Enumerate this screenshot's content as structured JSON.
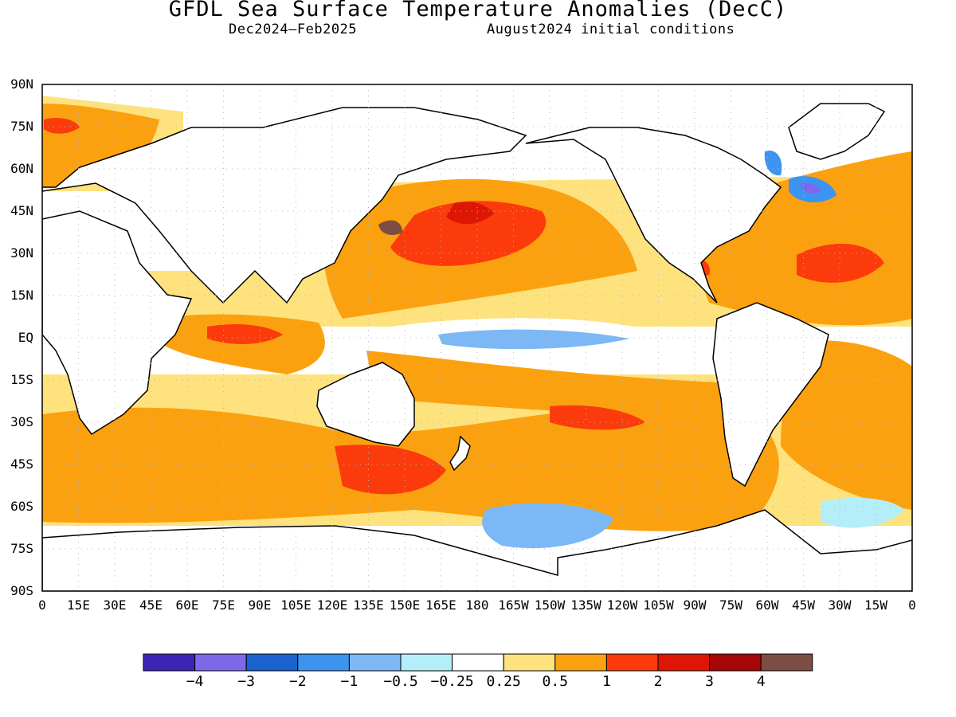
{
  "title": "GFDL Sea Surface Temperature Anomalies (DecC)",
  "subtitle_left": "Dec2024–Feb2025",
  "subtitle_right": "August2024 initial conditions",
  "lat_labels": [
    "90N",
    "75N",
    "60N",
    "45N",
    "30N",
    "15N",
    "EQ",
    "15S",
    "30S",
    "45S",
    "60S",
    "75S",
    "90S"
  ],
  "lon_labels": [
    "0",
    "15E",
    "30E",
    "45E",
    "60E",
    "75E",
    "90E",
    "105E",
    "120E",
    "135E",
    "150E",
    "165E",
    "180",
    "165W",
    "150W",
    "135W",
    "120W",
    "105W",
    "90W",
    "75W",
    "60W",
    "45W",
    "30W",
    "15W",
    "0"
  ],
  "legend": {
    "colors": [
      "#3c24b4",
      "#7d68ea",
      "#1a62d0",
      "#3d94f0",
      "#7bb8f5",
      "#b4eef8",
      "#ffffff",
      "#fde27e",
      "#fba10f",
      "#fb3b0b",
      "#dd1704",
      "#a50606",
      "#7c4d45"
    ],
    "labels": [
      "−4",
      "−3",
      "−2",
      "−1",
      "−0.5",
      "−0.25",
      "0.25",
      "0.5",
      "1",
      "2",
      "3",
      "4"
    ]
  },
  "colors": {
    "warm_strong": "#fb3b0b",
    "warm": "#fba10f",
    "warm_weak": "#fde27e",
    "cool_weak": "#b4eef8",
    "cool": "#7bb8f5",
    "cool_strong": "#3d94f0"
  }
}
